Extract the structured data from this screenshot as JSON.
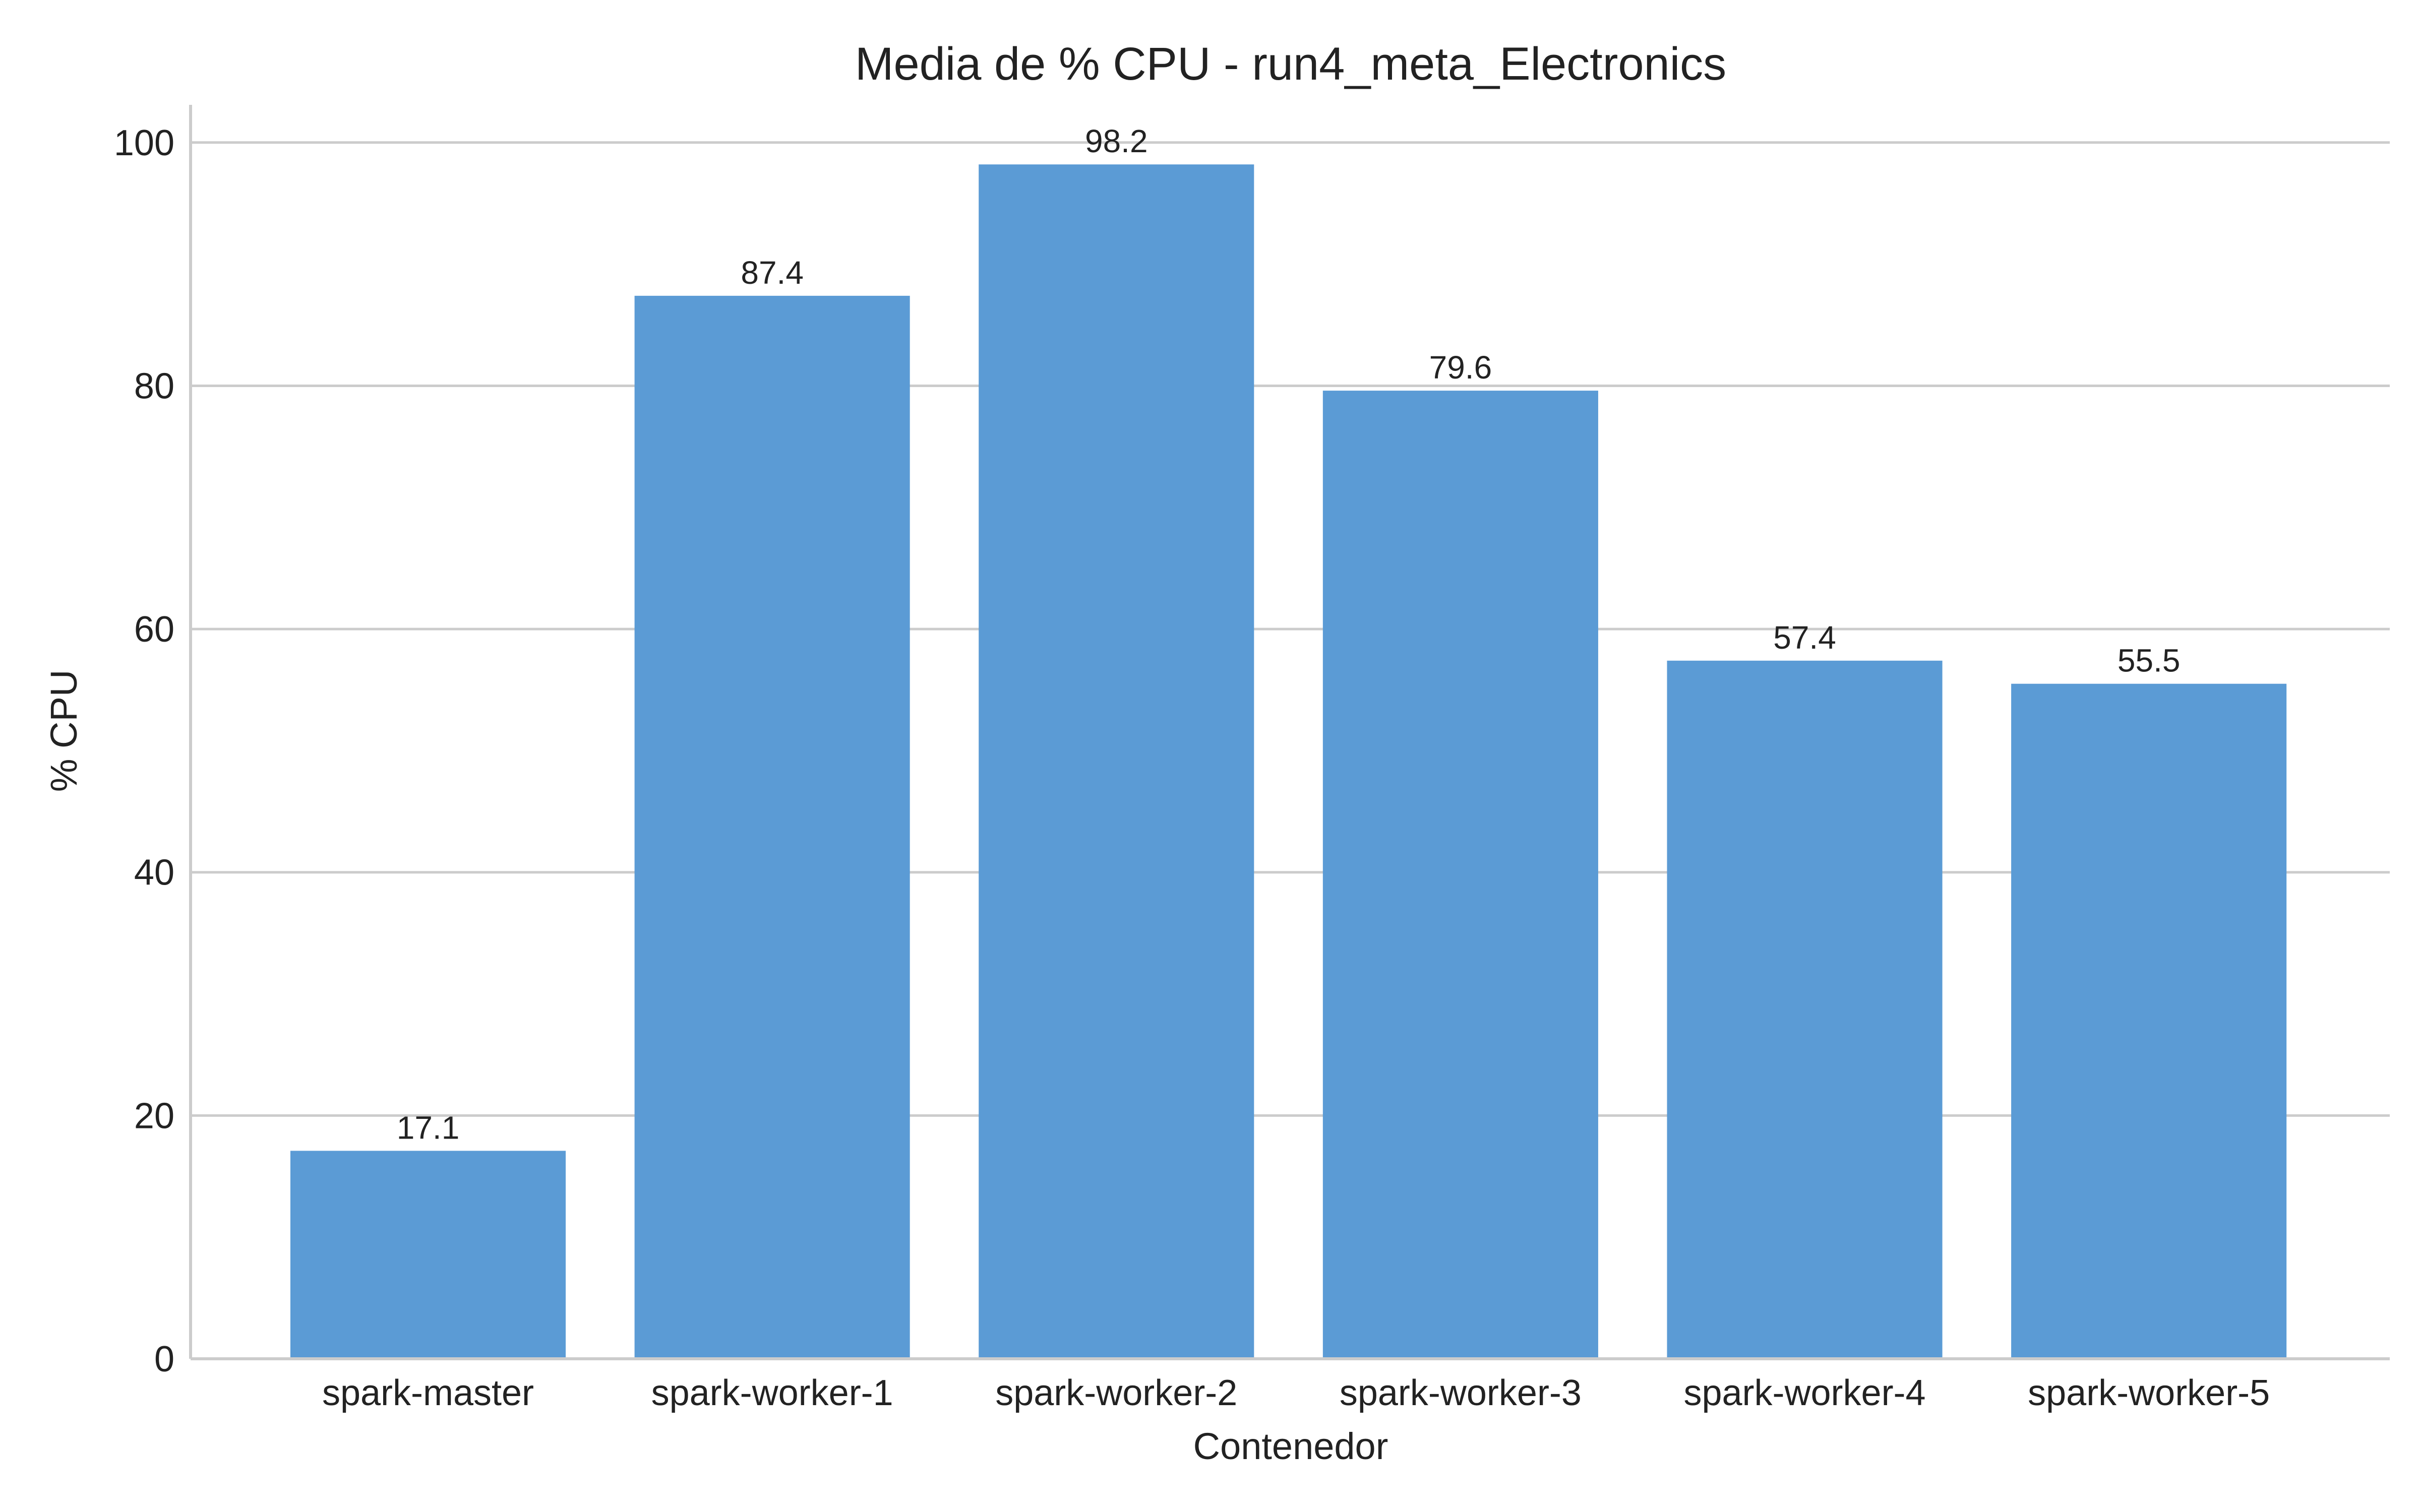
{
  "chart_data": {
    "type": "bar",
    "title": "Media de % CPU - run4_meta_Electronics",
    "xlabel": "Contenedor",
    "ylabel": "% CPU",
    "categories": [
      "spark-master",
      "spark-worker-1",
      "spark-worker-2",
      "spark-worker-3",
      "spark-worker-4",
      "spark-worker-5"
    ],
    "values": [
      17.1,
      87.4,
      98.2,
      79.6,
      57.4,
      55.5
    ],
    "data_labels": [
      "17.1",
      "87.4",
      "98.2",
      "79.6",
      "57.4",
      "55.5"
    ],
    "y_ticks": [
      0,
      20,
      40,
      60,
      80,
      100
    ],
    "y_tick_labels": [
      "0",
      "20",
      "40",
      "60",
      "80",
      "100"
    ],
    "ylim": [
      0,
      103.1
    ],
    "grid": true,
    "grid_axis": "y",
    "legend": "none",
    "bar_color": "#5b9bd5",
    "grid_color": "#cccccc",
    "text_color": "#222222"
  }
}
